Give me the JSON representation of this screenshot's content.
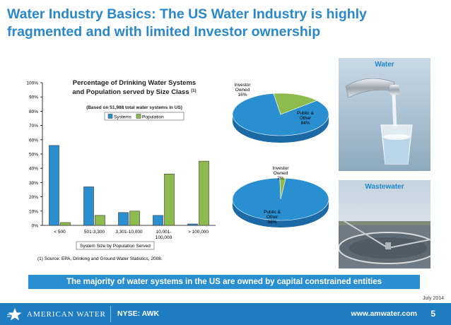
{
  "title": "Water Industry Basics: The US Water Industry is highly fragmented and with limited Investor ownership",
  "chart_data": {
    "type": "bar",
    "title": "Percentage of Drinking Water Systems and Population served by Size Class",
    "title_superscript": "(1)",
    "subtitle": "(Based on 51,988 total water systems in US)",
    "xlabel": "System Size by Population Served",
    "categories": [
      "< 500",
      "501-3,300",
      "3,301-10,000",
      "10,001-\n100,000",
      "> 100,000"
    ],
    "category_lines": [
      [
        "< 500"
      ],
      [
        "501-3,300"
      ],
      [
        "3,301-10,000"
      ],
      [
        "10,001-",
        "100,000"
      ],
      [
        "> 100,000"
      ]
    ],
    "series": [
      {
        "name": "Systems",
        "values": [
          56,
          27,
          9,
          7,
          1
        ],
        "color": "#2a8fd0"
      },
      {
        "name": "Population",
        "values": [
          2,
          7,
          10,
          36,
          45
        ],
        "color": "#8dbb4e"
      }
    ],
    "yticks": [
      "0%",
      "10%",
      "20%",
      "30%",
      "40%",
      "50%",
      "60%",
      "70%",
      "80%",
      "90%",
      "100%"
    ],
    "ylim": [
      0,
      100
    ],
    "legend_position": "top"
  },
  "source_note": "(1) Source: EPA, Drinking and Ground Water Statistics, 2008.",
  "pies": [
    {
      "slices": [
        {
          "label_lines": [
            "Investor",
            "Owned",
            "16%"
          ],
          "value": 16,
          "color": "#8dbb4e"
        },
        {
          "label_lines": [
            "Public &",
            "Other",
            "84%"
          ],
          "value": 84,
          "color": "#2a8fd0"
        }
      ]
    },
    {
      "slices": [
        {
          "label_lines": [
            "Investor",
            "Owned",
            "2%"
          ],
          "value": 2,
          "color": "#8dbb4e"
        },
        {
          "label_lines": [
            "Public &",
            "Other",
            "98%"
          ],
          "value": 98,
          "color": "#2a8fd0"
        }
      ]
    }
  ],
  "photos": {
    "water_label": "Water",
    "wastewater_label": "Wastewater"
  },
  "banner": "The majority of water systems in the US are owned by capital constrained entities",
  "date": "July 2014",
  "footer": {
    "logo_text": "AMERICAN WATER",
    "ticker": "NYSE: AWK",
    "url": "www.amwater.com",
    "page": "5"
  },
  "colors": {
    "brand_blue": "#1e7cc0",
    "title_blue": "#2a88c8",
    "green": "#8dbb4e"
  }
}
